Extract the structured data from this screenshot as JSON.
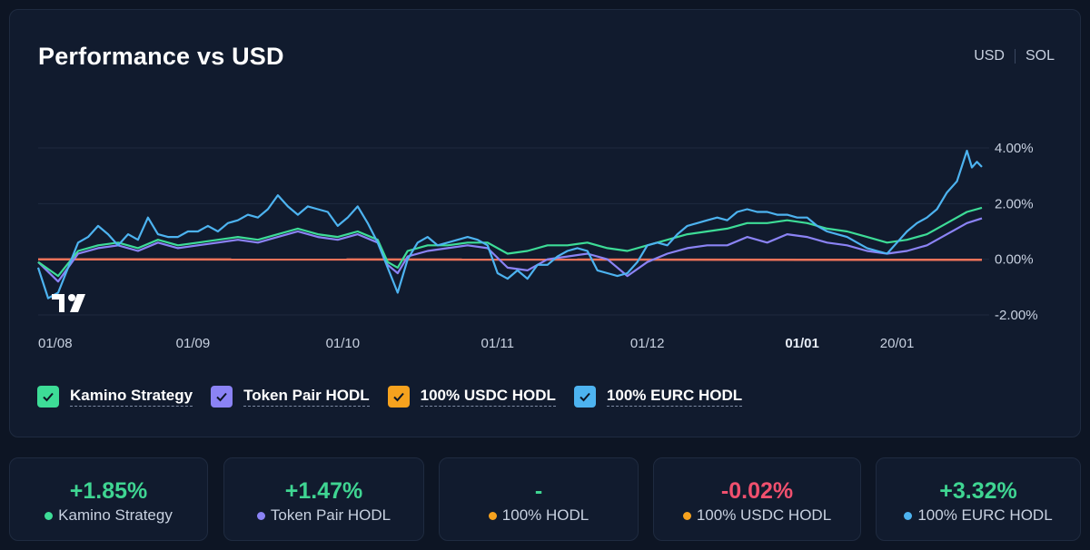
{
  "title": "Performance vs USD",
  "currency_toggle": {
    "options": [
      "USD",
      "SOL"
    ],
    "selected": "USD"
  },
  "colors": {
    "kamino": "#3ddc97",
    "token_pair": "#8b83f5",
    "usdc": "#f6a21e",
    "eurc": "#4db3f0",
    "flat_line": "#f0735a",
    "positive": "#3fd592",
    "negative": "#f0506e"
  },
  "legend": [
    {
      "label": "Kamino Strategy",
      "color": "#3ddc97",
      "checked": true
    },
    {
      "label": "Token Pair HODL",
      "color": "#8b83f5",
      "checked": true
    },
    {
      "label": "100% USDC HODL",
      "color": "#f6a21e",
      "checked": true
    },
    {
      "label": "100% EURC HODL",
      "color": "#4db3f0",
      "checked": true
    }
  ],
  "stats": [
    {
      "value": "+1.85%",
      "label": "Kamino Strategy",
      "dot": "#3ddc97",
      "tone": "pos"
    },
    {
      "value": "+1.47%",
      "label": "Token Pair HODL",
      "dot": "#8b83f5",
      "tone": "pos"
    },
    {
      "value": "-",
      "label": "100% HODL",
      "dot": "#f6a21e",
      "tone": "neu"
    },
    {
      "value": "-0.02%",
      "label": "100% USDC HODL",
      "dot": "#f6a21e",
      "tone": "neg"
    },
    {
      "value": "+3.32%",
      "label": "100% EURC HODL",
      "dot": "#4db3f0",
      "tone": "pos"
    }
  ],
  "chart_data": {
    "type": "line",
    "title": "Performance vs USD",
    "xlabel": "",
    "ylabel": "",
    "ylim": [
      -2,
      4
    ],
    "y_ticks": [
      4,
      2,
      0,
      -2
    ],
    "y_tick_labels": [
      "4.00%",
      "2.00%",
      "0.00%",
      "-2.00%"
    ],
    "x_tick_labels": [
      "01/08",
      "01/09",
      "01/10",
      "01/11",
      "01/12",
      "01/01",
      "20/01"
    ],
    "x_tick_positions": [
      0,
      31,
      61,
      92,
      122,
      153,
      172
    ],
    "x_bold_tick": "01/01",
    "x_range": [
      0,
      189
    ],
    "grid": true,
    "series": [
      {
        "name": "100% USDC HODL",
        "color": "#f0735a",
        "points": [
          [
            0,
            0
          ],
          [
            189,
            -0.02
          ]
        ]
      },
      {
        "name": "Token Pair HODL",
        "color": "#8b83f5",
        "points": [
          [
            0,
            -0.1
          ],
          [
            4,
            -0.8
          ],
          [
            8,
            0.2
          ],
          [
            12,
            0.4
          ],
          [
            16,
            0.5
          ],
          [
            20,
            0.3
          ],
          [
            24,
            0.6
          ],
          [
            28,
            0.4
          ],
          [
            32,
            0.5
          ],
          [
            36,
            0.6
          ],
          [
            40,
            0.7
          ],
          [
            44,
            0.6
          ],
          [
            48,
            0.8
          ],
          [
            52,
            1.0
          ],
          [
            56,
            0.8
          ],
          [
            60,
            0.7
          ],
          [
            64,
            0.9
          ],
          [
            68,
            0.6
          ],
          [
            70,
            -0.2
          ],
          [
            72,
            -0.5
          ],
          [
            74,
            0.1
          ],
          [
            78,
            0.3
          ],
          [
            82,
            0.4
          ],
          [
            86,
            0.5
          ],
          [
            90,
            0.4
          ],
          [
            94,
            -0.3
          ],
          [
            98,
            -0.4
          ],
          [
            102,
            0.0
          ],
          [
            106,
            0.1
          ],
          [
            110,
            0.2
          ],
          [
            114,
            0.0
          ],
          [
            118,
            -0.6
          ],
          [
            122,
            -0.1
          ],
          [
            126,
            0.2
          ],
          [
            130,
            0.4
          ],
          [
            134,
            0.5
          ],
          [
            138,
            0.5
          ],
          [
            142,
            0.8
          ],
          [
            146,
            0.6
          ],
          [
            150,
            0.9
          ],
          [
            154,
            0.8
          ],
          [
            158,
            0.6
          ],
          [
            162,
            0.5
          ],
          [
            166,
            0.3
          ],
          [
            170,
            0.2
          ],
          [
            174,
            0.3
          ],
          [
            178,
            0.5
          ],
          [
            182,
            0.9
          ],
          [
            186,
            1.3
          ],
          [
            189,
            1.47
          ]
        ]
      },
      {
        "name": "Kamino Strategy",
        "color": "#3ddc97",
        "points": [
          [
            0,
            -0.1
          ],
          [
            4,
            -0.6
          ],
          [
            8,
            0.3
          ],
          [
            12,
            0.5
          ],
          [
            16,
            0.6
          ],
          [
            20,
            0.4
          ],
          [
            24,
            0.7
          ],
          [
            28,
            0.5
          ],
          [
            32,
            0.6
          ],
          [
            36,
            0.7
          ],
          [
            40,
            0.8
          ],
          [
            44,
            0.7
          ],
          [
            48,
            0.9
          ],
          [
            52,
            1.1
          ],
          [
            56,
            0.9
          ],
          [
            60,
            0.8
          ],
          [
            64,
            1.0
          ],
          [
            68,
            0.7
          ],
          [
            70,
            -0.1
          ],
          [
            72,
            -0.3
          ],
          [
            74,
            0.3
          ],
          [
            78,
            0.5
          ],
          [
            82,
            0.5
          ],
          [
            86,
            0.6
          ],
          [
            90,
            0.6
          ],
          [
            94,
            0.2
          ],
          [
            98,
            0.3
          ],
          [
            102,
            0.5
          ],
          [
            106,
            0.5
          ],
          [
            110,
            0.6
          ],
          [
            114,
            0.4
          ],
          [
            118,
            0.3
          ],
          [
            122,
            0.5
          ],
          [
            126,
            0.7
          ],
          [
            130,
            0.9
          ],
          [
            134,
            1.0
          ],
          [
            138,
            1.1
          ],
          [
            142,
            1.3
          ],
          [
            146,
            1.3
          ],
          [
            150,
            1.4
          ],
          [
            154,
            1.3
          ],
          [
            158,
            1.1
          ],
          [
            162,
            1.0
          ],
          [
            166,
            0.8
          ],
          [
            170,
            0.6
          ],
          [
            174,
            0.7
          ],
          [
            178,
            0.9
          ],
          [
            182,
            1.3
          ],
          [
            186,
            1.7
          ],
          [
            189,
            1.85
          ]
        ]
      },
      {
        "name": "100% EURC HODL",
        "color": "#4db3f0",
        "points": [
          [
            0,
            -0.3
          ],
          [
            2,
            -1.4
          ],
          [
            4,
            -1.2
          ],
          [
            6,
            -0.3
          ],
          [
            8,
            0.6
          ],
          [
            10,
            0.8
          ],
          [
            12,
            1.2
          ],
          [
            14,
            0.9
          ],
          [
            16,
            0.5
          ],
          [
            18,
            0.9
          ],
          [
            20,
            0.7
          ],
          [
            22,
            1.5
          ],
          [
            24,
            0.9
          ],
          [
            26,
            0.8
          ],
          [
            28,
            0.8
          ],
          [
            30,
            1.0
          ],
          [
            32,
            1.0
          ],
          [
            34,
            1.2
          ],
          [
            36,
            1.0
          ],
          [
            38,
            1.3
          ],
          [
            40,
            1.4
          ],
          [
            42,
            1.6
          ],
          [
            44,
            1.5
          ],
          [
            46,
            1.8
          ],
          [
            48,
            2.3
          ],
          [
            50,
            1.9
          ],
          [
            52,
            1.6
          ],
          [
            54,
            1.9
          ],
          [
            56,
            1.8
          ],
          [
            58,
            1.7
          ],
          [
            60,
            1.2
          ],
          [
            62,
            1.5
          ],
          [
            64,
            1.9
          ],
          [
            66,
            1.3
          ],
          [
            68,
            0.6
          ],
          [
            70,
            -0.3
          ],
          [
            72,
            -1.2
          ],
          [
            74,
            0.0
          ],
          [
            76,
            0.6
          ],
          [
            78,
            0.8
          ],
          [
            80,
            0.5
          ],
          [
            82,
            0.6
          ],
          [
            84,
            0.7
          ],
          [
            86,
            0.8
          ],
          [
            88,
            0.7
          ],
          [
            90,
            0.5
          ],
          [
            92,
            -0.5
          ],
          [
            94,
            -0.7
          ],
          [
            96,
            -0.4
          ],
          [
            98,
            -0.7
          ],
          [
            100,
            -0.2
          ],
          [
            102,
            -0.2
          ],
          [
            104,
            0.1
          ],
          [
            106,
            0.3
          ],
          [
            108,
            0.4
          ],
          [
            110,
            0.3
          ],
          [
            112,
            -0.4
          ],
          [
            114,
            -0.5
          ],
          [
            116,
            -0.6
          ],
          [
            118,
            -0.5
          ],
          [
            120,
            -0.1
          ],
          [
            122,
            0.5
          ],
          [
            124,
            0.6
          ],
          [
            126,
            0.5
          ],
          [
            128,
            0.9
          ],
          [
            130,
            1.2
          ],
          [
            132,
            1.3
          ],
          [
            134,
            1.4
          ],
          [
            136,
            1.5
          ],
          [
            138,
            1.4
          ],
          [
            140,
            1.7
          ],
          [
            142,
            1.8
          ],
          [
            144,
            1.7
          ],
          [
            146,
            1.7
          ],
          [
            148,
            1.6
          ],
          [
            150,
            1.6
          ],
          [
            152,
            1.5
          ],
          [
            154,
            1.5
          ],
          [
            156,
            1.2
          ],
          [
            158,
            1.0
          ],
          [
            160,
            0.9
          ],
          [
            162,
            0.8
          ],
          [
            164,
            0.6
          ],
          [
            166,
            0.4
          ],
          [
            168,
            0.3
          ],
          [
            170,
            0.2
          ],
          [
            172,
            0.6
          ],
          [
            174,
            1.0
          ],
          [
            176,
            1.3
          ],
          [
            178,
            1.5
          ],
          [
            180,
            1.8
          ],
          [
            182,
            2.4
          ],
          [
            184,
            2.8
          ],
          [
            186,
            3.9
          ],
          [
            187,
            3.3
          ],
          [
            188,
            3.5
          ],
          [
            189,
            3.32
          ]
        ]
      }
    ]
  }
}
